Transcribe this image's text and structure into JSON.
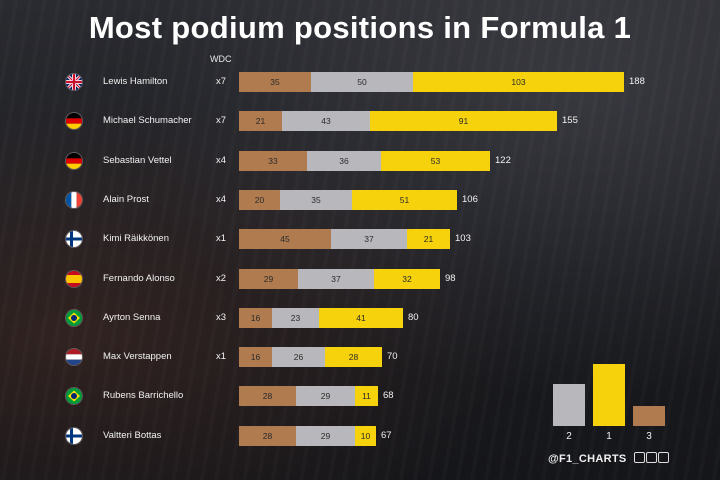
{
  "chart_data": {
    "type": "bar",
    "stacked": true,
    "orientation": "horizontal",
    "title": "Most podium positions in Formula 1",
    "column_header": "WDC",
    "categories": [
      "Lewis Hamilton",
      "Michael Schumacher",
      "Sebastian Vettel",
      "Alain Prost",
      "Kimi Räikkönen",
      "Fernando Alonso",
      "Ayrton Senna",
      "Max Verstappen",
      "Rubens Barrichello",
      "Valtteri Bottas"
    ],
    "wdc": [
      "x7",
      "x7",
      "x4",
      "x4",
      "x1",
      "x2",
      "x3",
      "x1",
      "",
      ""
    ],
    "series": [
      {
        "key": "bronze",
        "values": [
          35,
          21,
          33,
          20,
          45,
          29,
          16,
          16,
          28,
          28
        ]
      },
      {
        "key": "silver",
        "values": [
          50,
          43,
          36,
          35,
          37,
          37,
          23,
          26,
          29,
          29
        ]
      },
      {
        "key": "gold",
        "values": [
          103,
          91,
          53,
          51,
          21,
          32,
          41,
          28,
          11,
          10
        ]
      }
    ],
    "totals": [
      188,
      155,
      122,
      106,
      103,
      98,
      80,
      70,
      68,
      67
    ],
    "flags": [
      "uk",
      "de",
      "de",
      "fr",
      "fi",
      "es",
      "br",
      "nl",
      "br",
      "fi"
    ],
    "legend": {
      "position": "bottom-right",
      "labels": {
        "silver": "2",
        "gold": "1",
        "bronze": "3"
      }
    },
    "colors": {
      "bronze": "#b07b4f",
      "silver": "#b8b8bc",
      "gold": "#f5d20c"
    }
  },
  "credit": "@F1_CHARTS"
}
